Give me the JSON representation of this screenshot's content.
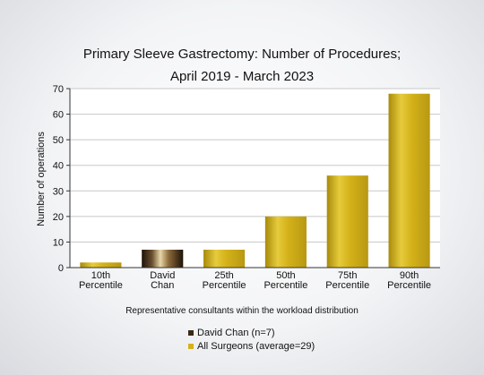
{
  "chart_data": {
    "type": "bar",
    "title": "Primary Sleeve Gastrectomy: Number of Procedures;",
    "subtitle": "April 2019 - March 2023",
    "xlabel": "Representative consultants within the workload distribution",
    "ylabel": "Number of operations",
    "ylim": [
      0,
      70
    ],
    "yticks": [
      0,
      10,
      20,
      30,
      40,
      50,
      60,
      70
    ],
    "grid": true,
    "categories": [
      [
        "10th",
        "Percentile"
      ],
      [
        "David",
        "Chan"
      ],
      [
        "25th",
        "Percentile"
      ],
      [
        "50th",
        "Percentile"
      ],
      [
        "75th",
        "Percentile"
      ],
      [
        "90th",
        "Percentile"
      ]
    ],
    "values": [
      2,
      7,
      7,
      20,
      36,
      68
    ],
    "highlight_index": 1,
    "colors": {
      "surgeon": "#3a2a18",
      "all": "#d4b21a",
      "grid": "#c8c8c8"
    },
    "legend": [
      {
        "label": "David Chan (n=7)",
        "color": "#3a2a18"
      },
      {
        "label": "All Surgeons (average=29)",
        "color": "#d4b21a"
      }
    ]
  }
}
